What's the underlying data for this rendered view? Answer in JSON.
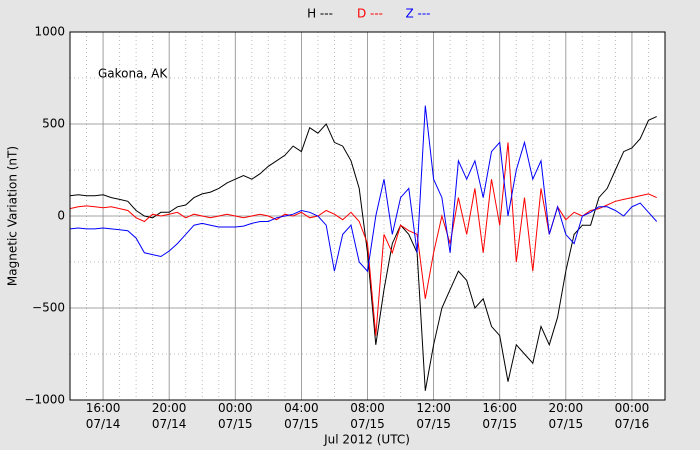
{
  "chart_data": {
    "type": "line",
    "annotation": "Gakona, AK",
    "xlabel": "Jul 2012 (UTC)",
    "ylabel": "Magnetic Variation (nT)",
    "xlim": [
      "2012-07-14 14:00",
      "2012-07-16 02:00"
    ],
    "ylim": [
      -1000,
      1000
    ],
    "yticks": [
      {
        "value": -1000,
        "label": "−1000"
      },
      {
        "value": -500,
        "label": "−500"
      },
      0,
      500,
      1000
    ],
    "yminorticks": [
      -750,
      -250,
      250,
      750
    ],
    "xticks": [
      {
        "value": "2012-07-14 16:00",
        "label": "16:00\n07/14"
      },
      {
        "value": "2012-07-14 20:00",
        "label": "20:00\n07/14"
      },
      {
        "value": "2012-07-15 00:00",
        "label": "00:00\n07/15"
      },
      {
        "value": "2012-07-15 04:00",
        "label": "04:00\n07/15"
      },
      {
        "value": "2012-07-15 08:00",
        "label": "08:00\n07/15"
      },
      {
        "value": "2012-07-15 12:00",
        "label": "12:00\n07/15"
      },
      {
        "value": "2012-07-15 16:00",
        "label": "16:00\n07/15"
      },
      {
        "value": "2012-07-15 20:00",
        "label": "20:00\n07/15"
      },
      {
        "value": "2012-07-16 00:00",
        "label": "00:00\n07/16"
      }
    ],
    "xminorticks": [
      "2012-07-14 15:00",
      "2012-07-14 17:00",
      "2012-07-14 18:00",
      "2012-07-14 19:00",
      "2012-07-14 21:00",
      "2012-07-14 22:00",
      "2012-07-14 23:00",
      "2012-07-15 01:00",
      "2012-07-15 02:00",
      "2012-07-15 03:00",
      "2012-07-15 05:00",
      "2012-07-15 06:00",
      "2012-07-15 07:00",
      "2012-07-15 09:00",
      "2012-07-15 10:00",
      "2012-07-15 11:00",
      "2012-07-15 13:00",
      "2012-07-15 14:00",
      "2012-07-15 15:00",
      "2012-07-15 17:00",
      "2012-07-15 18:00",
      "2012-07-15 19:00",
      "2012-07-15 21:00",
      "2012-07-15 22:00",
      "2012-07-15 23:00",
      "2012-07-16 01:00"
    ],
    "grid": true,
    "x": [
      "2012-07-14 14:00",
      "2012-07-14 14:30",
      "2012-07-14 15:00",
      "2012-07-14 15:30",
      "2012-07-14 16:00",
      "2012-07-14 16:30",
      "2012-07-14 17:00",
      "2012-07-14 17:30",
      "2012-07-14 18:00",
      "2012-07-14 18:30",
      "2012-07-14 19:00",
      "2012-07-14 19:30",
      "2012-07-14 20:00",
      "2012-07-14 20:30",
      "2012-07-14 21:00",
      "2012-07-14 21:30",
      "2012-07-14 22:00",
      "2012-07-14 22:30",
      "2012-07-14 23:00",
      "2012-07-14 23:30",
      "2012-07-15 00:00",
      "2012-07-15 00:30",
      "2012-07-15 01:00",
      "2012-07-15 01:30",
      "2012-07-15 02:00",
      "2012-07-15 02:30",
      "2012-07-15 03:00",
      "2012-07-15 03:30",
      "2012-07-15 04:00",
      "2012-07-15 04:30",
      "2012-07-15 05:00",
      "2012-07-15 05:30",
      "2012-07-15 06:00",
      "2012-07-15 06:30",
      "2012-07-15 07:00",
      "2012-07-15 07:30",
      "2012-07-15 08:00",
      "2012-07-15 08:30",
      "2012-07-15 09:00",
      "2012-07-15 09:30",
      "2012-07-15 10:00",
      "2012-07-15 10:30",
      "2012-07-15 11:00",
      "2012-07-15 11:30",
      "2012-07-15 12:00",
      "2012-07-15 12:30",
      "2012-07-15 13:00",
      "2012-07-15 13:30",
      "2012-07-15 14:00",
      "2012-07-15 14:30",
      "2012-07-15 15:00",
      "2012-07-15 15:30",
      "2012-07-15 16:00",
      "2012-07-15 16:30",
      "2012-07-15 17:00",
      "2012-07-15 17:30",
      "2012-07-15 18:00",
      "2012-07-15 18:30",
      "2012-07-15 19:00",
      "2012-07-15 19:30",
      "2012-07-15 20:00",
      "2012-07-15 20:30",
      "2012-07-15 21:00",
      "2012-07-15 21:30",
      "2012-07-15 22:00",
      "2012-07-15 22:30",
      "2012-07-15 23:00",
      "2012-07-15 23:30",
      "2012-07-16 00:00",
      "2012-07-16 00:30",
      "2012-07-16 01:00",
      "2012-07-16 01:30"
    ],
    "series": [
      {
        "name": "H ---",
        "color": "#000000",
        "values": [
          110,
          115,
          110,
          110,
          115,
          100,
          90,
          80,
          30,
          0,
          -10,
          20,
          20,
          50,
          60,
          100,
          120,
          130,
          150,
          180,
          200,
          220,
          200,
          230,
          270,
          300,
          330,
          380,
          350,
          480,
          450,
          500,
          400,
          380,
          300,
          150,
          -200,
          -700,
          -400,
          -150,
          -50,
          -100,
          -200,
          -950,
          -700,
          -500,
          -400,
          -300,
          -350,
          -500,
          -450,
          -600,
          -650,
          -900,
          -700,
          -750,
          -800,
          -600,
          -700,
          -550,
          -300,
          -100,
          -50,
          -50,
          100,
          150,
          250,
          350,
          370,
          420,
          520,
          540
        ]
      },
      {
        "name": "D ---",
        "color": "#ff0000",
        "values": [
          40,
          50,
          55,
          50,
          45,
          50,
          40,
          30,
          -10,
          -30,
          10,
          0,
          10,
          20,
          -10,
          10,
          0,
          -10,
          0,
          10,
          0,
          -10,
          0,
          10,
          0,
          -20,
          10,
          0,
          20,
          -10,
          0,
          30,
          10,
          -20,
          20,
          -30,
          -150,
          -650,
          -100,
          -200,
          -50,
          -80,
          -100,
          -450,
          -200,
          0,
          -150,
          100,
          -100,
          150,
          -200,
          200,
          -50,
          400,
          -250,
          100,
          -300,
          150,
          -100,
          50,
          -20,
          20,
          0,
          30,
          40,
          60,
          80,
          90,
          100,
          110,
          120,
          100
        ]
      },
      {
        "name": "Z ---",
        "color": "#0000ff",
        "values": [
          -70,
          -65,
          -70,
          -70,
          -65,
          -70,
          -75,
          -80,
          -120,
          -200,
          -210,
          -220,
          -190,
          -150,
          -100,
          -50,
          -40,
          -50,
          -60,
          -60,
          -60,
          -55,
          -40,
          -30,
          -30,
          -10,
          0,
          10,
          30,
          20,
          0,
          -50,
          -300,
          -100,
          -50,
          -250,
          -300,
          0,
          200,
          -100,
          100,
          150,
          -200,
          600,
          200,
          100,
          -200,
          300,
          200,
          300,
          100,
          350,
          400,
          0,
          250,
          400,
          200,
          300,
          -100,
          50,
          -100,
          -150,
          0,
          20,
          50,
          50,
          30,
          0,
          50,
          70,
          20,
          -30
        ]
      }
    ]
  }
}
